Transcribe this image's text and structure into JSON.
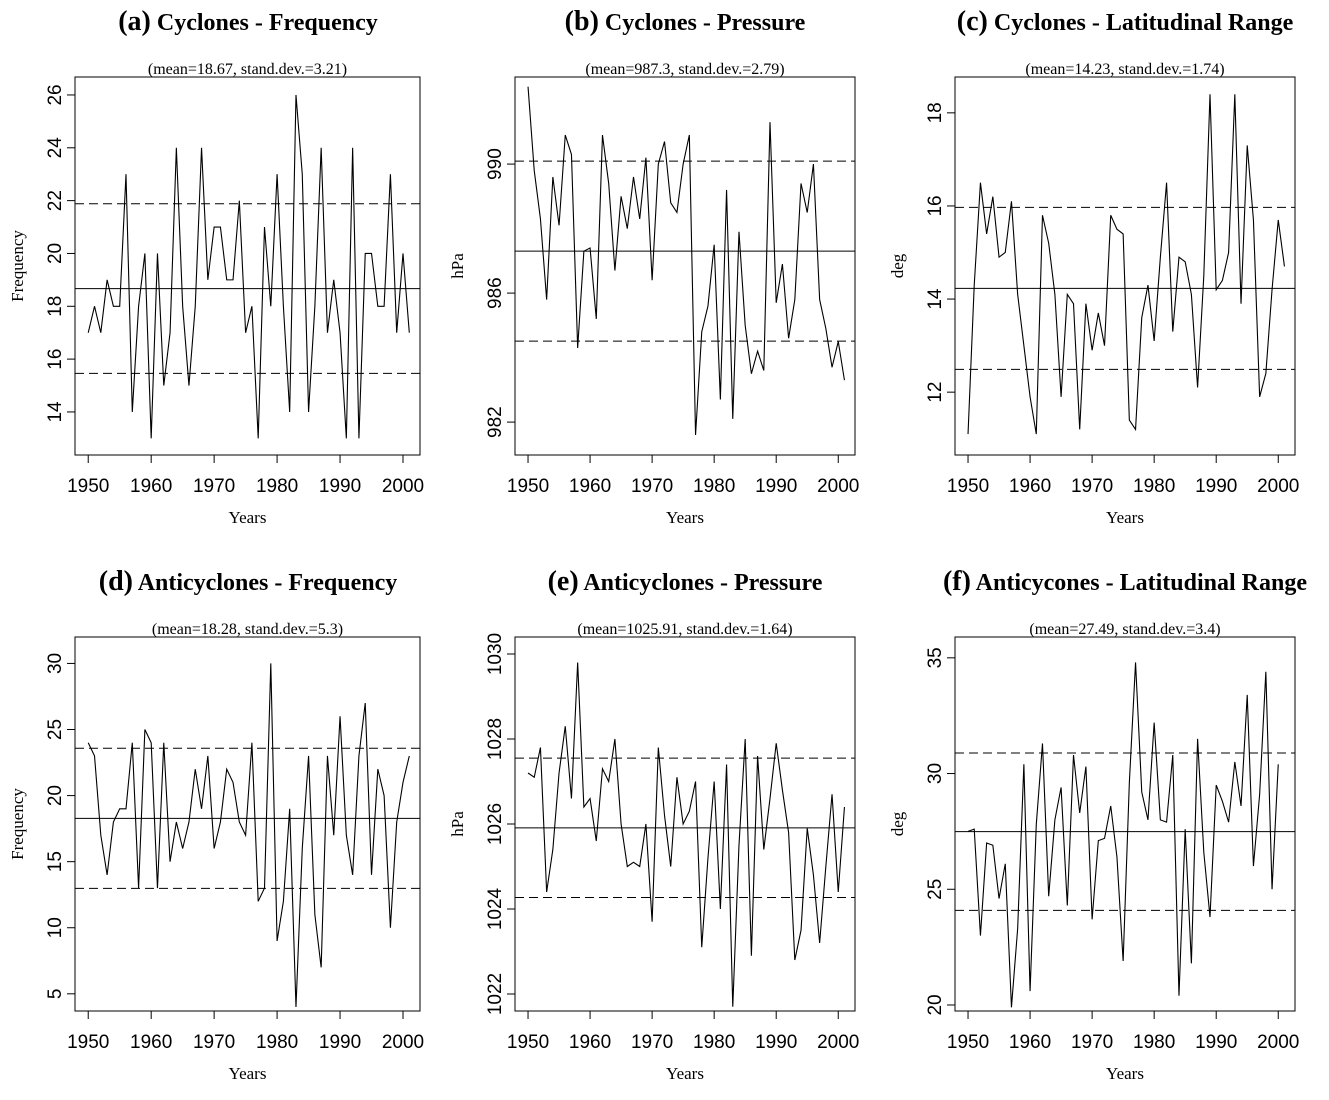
{
  "chart_data": [
    {
      "type": "line",
      "panel": "(a)",
      "title": "Cyclones - Frequency",
      "subtitle": "(mean=18.67, stand.dev.=3.21)",
      "xlabel": "Years",
      "ylabel": "Frequency",
      "x": [
        1950,
        1951,
        1952,
        1953,
        1954,
        1955,
        1956,
        1957,
        1958,
        1959,
        1960,
        1961,
        1962,
        1963,
        1964,
        1965,
        1966,
        1967,
        1968,
        1969,
        1970,
        1971,
        1972,
        1973,
        1974,
        1975,
        1976,
        1977,
        1978,
        1979,
        1980,
        1981,
        1982,
        1983,
        1984,
        1985,
        1986,
        1987,
        1988,
        1989,
        1990,
        1991,
        1992,
        1993,
        1994,
        1995,
        1996,
        1997,
        1998,
        1999,
        2000,
        2001
      ],
      "values": [
        17,
        18,
        17,
        19,
        18,
        18,
        23,
        14,
        18,
        20,
        13,
        20,
        15,
        17,
        24,
        18,
        15,
        18,
        24,
        19,
        21,
        21,
        19,
        19,
        22,
        17,
        18,
        13,
        21,
        18,
        23,
        18,
        14,
        26,
        23,
        14,
        18,
        24,
        17,
        19,
        17,
        13,
        24,
        13,
        20,
        20,
        18,
        18,
        23,
        17,
        20,
        17
      ],
      "color": "#000000",
      "xlim": [
        1947.9,
        2002.7
      ],
      "xticks": [
        1950,
        1960,
        1970,
        1980,
        1990,
        2000
      ],
      "ylim": [
        12.37,
        26.68
      ],
      "yticks": [
        14,
        16,
        18,
        20,
        22,
        24,
        26
      ],
      "hlines": [
        18.67,
        21.88,
        15.46
      ],
      "hline_styles": [
        "solid",
        "dashed",
        "dashed"
      ]
    },
    {
      "type": "line",
      "panel": "(b)",
      "title": "Cyclones - Pressure",
      "subtitle": "(mean=987.3, stand.dev.=2.79)",
      "xlabel": "Years",
      "ylabel": "hPa",
      "x": [
        1950,
        1951,
        1952,
        1953,
        1954,
        1955,
        1956,
        1957,
        1958,
        1959,
        1960,
        1961,
        1962,
        1963,
        1964,
        1965,
        1966,
        1967,
        1968,
        1969,
        1970,
        1971,
        1972,
        1973,
        1974,
        1975,
        1976,
        1977,
        1978,
        1979,
        1980,
        1981,
        1982,
        1983,
        1984,
        1985,
        1986,
        1987,
        1988,
        1989,
        1990,
        1991,
        1992,
        1993,
        1994,
        1995,
        1996,
        1997,
        1998,
        1999,
        2000,
        2001
      ],
      "values": [
        992.4,
        989.8,
        988.3,
        985.8,
        989.6,
        988.1,
        990.9,
        990.3,
        984.3,
        987.3,
        987.4,
        985.2,
        990.9,
        989.4,
        986.7,
        989,
        988,
        989.6,
        988.3,
        990.2,
        986.4,
        990,
        990.7,
        988.8,
        988.5,
        990,
        990.9,
        981.6,
        984.8,
        985.6,
        987.5,
        982.7,
        989.2,
        982.1,
        987.9,
        985,
        983.5,
        984.2,
        983.6,
        991.3,
        985.7,
        986.9,
        984.6,
        985.8,
        989.4,
        988.5,
        990,
        985.8,
        984.9,
        983.7,
        984.5,
        983.3
      ],
      "color": "#000000",
      "xlim": [
        1947.9,
        2002.7
      ],
      "xticks": [
        1950,
        1960,
        1970,
        1980,
        1990,
        2000
      ],
      "ylim": [
        980.98,
        992.7
      ],
      "yticks": [
        982,
        986,
        990
      ],
      "hlines": [
        987.3,
        990.09,
        984.51
      ],
      "hline_styles": [
        "solid",
        "dashed",
        "dashed"
      ]
    },
    {
      "type": "line",
      "panel": "(c)",
      "title": "Cyclones - Latitudinal Range",
      "subtitle": "(mean=14.23, stand.dev.=1.74)",
      "xlabel": "Years",
      "ylabel": "deg",
      "x": [
        1950,
        1951,
        1952,
        1953,
        1954,
        1955,
        1956,
        1957,
        1958,
        1959,
        1960,
        1961,
        1962,
        1963,
        1964,
        1965,
        1966,
        1967,
        1968,
        1969,
        1970,
        1971,
        1972,
        1973,
        1974,
        1975,
        1976,
        1977,
        1978,
        1979,
        1980,
        1981,
        1982,
        1983,
        1984,
        1985,
        1986,
        1987,
        1988,
        1989,
        1990,
        1991,
        1992,
        1993,
        1994,
        1995,
        1996,
        1997,
        1998,
        1999,
        2000,
        2001
      ],
      "values": [
        11.1,
        14.3,
        16.5,
        15.4,
        16.2,
        14.9,
        15,
        16.1,
        14.1,
        13,
        11.9,
        11.1,
        15.8,
        15.2,
        14.1,
        11.9,
        14.1,
        13.9,
        11.2,
        13.9,
        12.9,
        13.7,
        13,
        15.8,
        15.5,
        15.4,
        11.4,
        11.2,
        13.6,
        14.3,
        13.1,
        14.9,
        16.5,
        13.3,
        14.9,
        14.8,
        14.1,
        12.1,
        14.5,
        18.4,
        14.2,
        14.4,
        15,
        18.4,
        13.9,
        17.3,
        15.7,
        11.9,
        12.4,
        14.2,
        15.7,
        14.7
      ],
      "color": "#000000",
      "xlim": [
        1947.9,
        2002.7
      ],
      "xticks": [
        1950,
        1960,
        1970,
        1980,
        1990,
        2000
      ],
      "ylim": [
        10.65,
        18.77
      ],
      "yticks": [
        12,
        14,
        16,
        18
      ],
      "hlines": [
        14.23,
        15.97,
        12.49
      ],
      "hline_styles": [
        "solid",
        "dashed",
        "dashed"
      ]
    },
    {
      "type": "line",
      "panel": "(d)",
      "title": "Anticyclones - Frequency",
      "subtitle": "(mean=18.28, stand.dev.=5.3)",
      "xlabel": "Years",
      "ylabel": "Frequency",
      "x": [
        1950,
        1951,
        1952,
        1953,
        1954,
        1955,
        1956,
        1957,
        1958,
        1959,
        1960,
        1961,
        1962,
        1963,
        1964,
        1965,
        1966,
        1967,
        1968,
        1969,
        1970,
        1971,
        1972,
        1973,
        1974,
        1975,
        1976,
        1977,
        1978,
        1979,
        1980,
        1981,
        1982,
        1983,
        1984,
        1985,
        1986,
        1987,
        1988,
        1989,
        1990,
        1991,
        1992,
        1993,
        1994,
        1995,
        1996,
        1997,
        1998,
        1999,
        2000,
        2001
      ],
      "values": [
        24,
        23,
        17,
        14,
        18,
        19,
        19,
        24,
        13,
        25,
        24,
        13,
        24,
        15,
        18,
        16,
        18,
        22,
        19,
        23,
        16,
        18,
        22,
        21,
        18,
        17,
        24,
        12,
        13,
        30,
        9,
        12,
        19,
        4,
        16,
        23,
        11,
        7,
        23,
        17,
        26,
        17,
        14,
        23,
        27,
        14,
        22,
        20,
        10,
        18,
        21,
        23
      ],
      "color": "#000000",
      "xlim": [
        1947.9,
        2002.7
      ],
      "xticks": [
        1950,
        1960,
        1970,
        1980,
        1990,
        2000
      ],
      "ylim": [
        3.7,
        32
      ],
      "yticks": [
        5,
        10,
        15,
        20,
        25,
        30
      ],
      "hlines": [
        18.28,
        23.58,
        12.98
      ],
      "hline_styles": [
        "solid",
        "dashed",
        "dashed"
      ]
    },
    {
      "type": "line",
      "panel": "(e)",
      "title": "Anticyclones - Pressure",
      "subtitle": "(mean=1025.91, stand.dev.=1.64)",
      "xlabel": "Years",
      "ylabel": "hPa",
      "x": [
        1950,
        1951,
        1952,
        1953,
        1954,
        1955,
        1956,
        1957,
        1958,
        1959,
        1960,
        1961,
        1962,
        1963,
        1964,
        1965,
        1966,
        1967,
        1968,
        1969,
        1970,
        1971,
        1972,
        1973,
        1974,
        1975,
        1976,
        1977,
        1978,
        1979,
        1980,
        1981,
        1982,
        1983,
        1984,
        1985,
        1986,
        1987,
        1988,
        1989,
        1990,
        1991,
        1992,
        1993,
        1994,
        1995,
        1996,
        1997,
        1998,
        1999,
        2000,
        2001
      ],
      "values": [
        1027.2,
        1027.1,
        1027.8,
        1024.4,
        1025.4,
        1027.2,
        1028.3,
        1026.6,
        1029.8,
        1026.4,
        1026.6,
        1025.6,
        1027.3,
        1027,
        1028,
        1026,
        1025,
        1025.1,
        1025,
        1026,
        1023.7,
        1027.8,
        1026.2,
        1025,
        1027.1,
        1026,
        1026.3,
        1027,
        1023.1,
        1025.2,
        1027,
        1024,
        1027.4,
        1021.7,
        1025.5,
        1028,
        1022.9,
        1027.6,
        1025.4,
        1026.6,
        1027.9,
        1026.8,
        1025.8,
        1022.8,
        1023.5,
        1025.9,
        1024.8,
        1023.2,
        1025,
        1026.7,
        1024.4,
        1026.4
      ],
      "color": "#000000",
      "xlim": [
        1947.9,
        2002.7
      ],
      "xticks": [
        1950,
        1960,
        1970,
        1980,
        1990,
        2000
      ],
      "ylim": [
        1021.6,
        1030.4
      ],
      "yticks": [
        1022,
        1024,
        1026,
        1028,
        1030
      ],
      "hlines": [
        1025.91,
        1027.55,
        1024.27
      ],
      "hline_styles": [
        "solid",
        "dashed",
        "dashed"
      ]
    },
    {
      "type": "line",
      "panel": "(f)",
      "title": "Anticycones - Latitudinal Range",
      "subtitle": "(mean=27.49, stand.dev.=3.4)",
      "xlabel": "Years",
      "ylabel": "deg",
      "x": [
        1950,
        1951,
        1952,
        1953,
        1954,
        1955,
        1956,
        1957,
        1958,
        1959,
        1960,
        1961,
        1962,
        1963,
        1964,
        1965,
        1966,
        1967,
        1968,
        1969,
        1970,
        1971,
        1972,
        1973,
        1974,
        1975,
        1976,
        1977,
        1978,
        1979,
        1980,
        1981,
        1982,
        1983,
        1984,
        1985,
        1986,
        1987,
        1988,
        1989,
        1990,
        1991,
        1992,
        1993,
        1994,
        1995,
        1996,
        1997,
        1998,
        1999,
        2000
      ],
      "values": [
        27.5,
        27.6,
        23,
        27,
        26.9,
        24.6,
        26.1,
        19.9,
        23.3,
        30.4,
        20.6,
        27.8,
        31.3,
        24.7,
        28,
        29.4,
        24.3,
        30.8,
        28.3,
        30.3,
        23.7,
        27.1,
        27.2,
        28.6,
        26.4,
        21.9,
        29.6,
        34.8,
        29.2,
        28,
        32.2,
        28,
        27.9,
        30.8,
        20.4,
        27.6,
        21.8,
        31.5,
        26.6,
        23.8,
        29.5,
        28.8,
        27.9,
        30.5,
        28.6,
        33.4,
        26,
        29.1,
        34.4,
        25,
        30.4
      ],
      "color": "#000000",
      "xlim": [
        1947.9,
        2002.7
      ],
      "xticks": [
        1950,
        1960,
        1970,
        1980,
        1990,
        2000
      ],
      "ylim": [
        19.74,
        35.9
      ],
      "yticks": [
        20,
        25,
        30,
        35
      ],
      "hlines": [
        27.49,
        30.89,
        24.09
      ],
      "hline_styles": [
        "solid",
        "dashed",
        "dashed"
      ]
    }
  ]
}
